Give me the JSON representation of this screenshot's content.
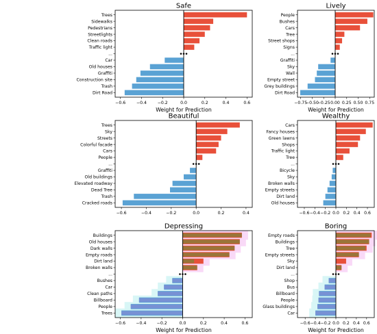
{
  "figure": {
    "colors": {
      "positive": "#e8503a",
      "negative": "#5aa2d4",
      "overlay_positive": "#8c7a3a",
      "overlay_negative": "#7c8ed4",
      "pos_shadow": "#f9d9f7",
      "neg_shadow": "#d8f6f6"
    }
  },
  "chart_data": [
    {
      "type": "bar",
      "orientation": "horizontal",
      "title": "Safe",
      "xlabel": "Weight for Prediction",
      "xlim": [
        -0.65,
        0.65
      ],
      "xticks": [
        -0.6,
        -0.4,
        -0.2,
        0.0,
        0.2,
        0.4,
        0.6
      ],
      "xtick_labels": [
        "−0.6",
        "−0.4",
        "−0.2",
        "0.0",
        "0.2",
        "0.4",
        "0.6"
      ],
      "ellipsis_label": "...",
      "positive": {
        "categories": [
          "Trees",
          "Sidewalks",
          "Pedestrians",
          "Streetlights",
          "Clean roads",
          "Traffic light"
        ],
        "values": [
          0.6,
          0.28,
          0.25,
          0.2,
          0.15,
          0.1
        ]
      },
      "negative": {
        "categories": [
          "Car",
          "Old houses",
          "Graffiti",
          "Construction site",
          "Trash",
          "Dirt Road"
        ],
        "values": [
          -0.18,
          -0.32,
          -0.41,
          -0.45,
          -0.49,
          -0.56
        ]
      },
      "overlay": null
    },
    {
      "type": "bar",
      "orientation": "horizontal",
      "title": "Lively",
      "xlabel": "Weight for Prediction",
      "xlim": [
        -0.82,
        0.85
      ],
      "xticks": [
        -0.75,
        -0.5,
        -0.25,
        0.0,
        0.25,
        0.5,
        0.75
      ],
      "xtick_labels": [
        "−0.75",
        "−0.50",
        "−0.25",
        "0.00",
        "0.25",
        "0.50",
        "0.75"
      ],
      "ellipsis_label": "...",
      "positive": {
        "categories": [
          "People",
          "Bushes",
          "Cars",
          "Tree",
          "Street shops",
          "Signs"
        ],
        "values": [
          0.83,
          0.7,
          0.54,
          0.2,
          0.15,
          0.1
        ]
      },
      "negative": {
        "categories": [
          "Graffiti",
          "Sky",
          "Wall",
          "Empty street",
          "Grey buildings",
          "Dirt Road"
        ],
        "values": [
          -0.1,
          -0.37,
          -0.4,
          -0.44,
          -0.6,
          -0.76
        ]
      },
      "overlay": null
    },
    {
      "type": "bar",
      "orientation": "horizontal",
      "title": "Beautiful",
      "xlabel": "",
      "xlim": [
        -0.65,
        0.45
      ],
      "xticks": [
        -0.6,
        -0.4,
        -0.2,
        0.0,
        0.2,
        0.4
      ],
      "xtick_labels": [
        "−0.6",
        "−0.4",
        "−0.2",
        "0.0",
        "0.2",
        "0.4"
      ],
      "ellipsis_label": "...",
      "positive": {
        "categories": [
          "Trees",
          "Sky",
          "Streets",
          "Colorful facade",
          "Cars",
          "People"
        ],
        "values": [
          0.35,
          0.25,
          0.2,
          0.18,
          0.16,
          0.05
        ]
      },
      "negative": {
        "categories": [
          "Graffiti",
          "Old buildings",
          "Elevated roadway",
          "Dead Tree",
          "Trash",
          "Cracked roads"
        ],
        "values": [
          -0.05,
          -0.1,
          -0.19,
          -0.21,
          -0.5,
          -0.59
        ]
      },
      "overlay": null
    },
    {
      "type": "bar",
      "orientation": "horizontal",
      "title": "Wealthy",
      "xlabel": "",
      "xlim": [
        -0.73,
        0.73
      ],
      "xticks": [
        -0.6,
        -0.4,
        -0.2,
        0.0,
        0.2,
        0.4,
        0.6
      ],
      "xtick_labels": [
        "−0.6",
        "−0.4",
        "−0.2",
        "0.0",
        "0.2",
        "0.4",
        "0.6"
      ],
      "ellipsis_label": "...",
      "positive": {
        "categories": [
          "Cars",
          "Fancy houses",
          "Green lawns",
          "Shops",
          "Traffic light",
          "Tree"
        ],
        "values": [
          0.7,
          0.57,
          0.46,
          0.42,
          0.26,
          0.14
        ]
      },
      "negative": {
        "categories": [
          "Bicycle",
          "Sky",
          "Broken walls",
          "Empty streets",
          "Dirt land",
          "Old houses"
        ],
        "values": [
          -0.06,
          -0.08,
          -0.12,
          -0.16,
          -0.2,
          -0.24
        ]
      },
      "overlay": null
    },
    {
      "type": "bar",
      "orientation": "horizontal",
      "title": "Depressing",
      "xlabel": "Weight for Prediction",
      "xlim": [
        -0.65,
        0.67
      ],
      "xticks": [
        -0.6,
        -0.4,
        -0.2,
        0.0,
        0.2,
        0.4,
        0.6
      ],
      "xtick_labels": [
        "−0.6",
        "−0.4",
        "−0.2",
        "0.0",
        "0.2",
        "0.4",
        "0.6"
      ],
      "ellipsis_label": "...",
      "positive": {
        "categories": [
          "Buildings",
          "Old houses",
          "Dark walls",
          "Empty roads",
          "Dirt land",
          "Broken walls"
        ],
        "values": [
          0.57,
          0.55,
          0.5,
          0.45,
          0.2,
          0.14
        ]
      },
      "negative": {
        "categories": [
          "Bushes",
          "Car",
          "Clean paths",
          "Billboard",
          "People",
          "Trees"
        ],
        "values": [
          -0.1,
          -0.18,
          -0.24,
          -0.42,
          -0.5,
          -0.59
        ]
      },
      "overlay": {
        "positive": [
          0.57,
          0.55,
          0.5,
          0.45,
          0.11,
          0.14
        ],
        "negative": [
          -0.1,
          -0.18,
          -0.24,
          -0.42,
          -0.5,
          -0.59
        ]
      }
    },
    {
      "type": "bar",
      "orientation": "horizontal",
      "title": "Boring",
      "xlabel": "Weight for Prediction",
      "xlim": [
        -0.75,
        0.75
      ],
      "xticks": [
        -0.6,
        -0.4,
        -0.2,
        0.0,
        0.2,
        0.4,
        0.6
      ],
      "xtick_labels": [
        "−0.6",
        "−0.4",
        "−0.2",
        "0.0",
        "0.2",
        "0.4",
        "0.6"
      ],
      "ellipsis_label": "...",
      "positive": {
        "categories": [
          "Empty roads",
          "Buildings",
          "Tree",
          "Empty streets",
          "Sky",
          "Dirt land"
        ],
        "values": [
          0.7,
          0.65,
          0.6,
          0.45,
          0.2,
          0.11
        ]
      },
      "negative": {
        "categories": [
          "Shop",
          "Bus",
          "Billboard",
          "People",
          "Glass buildings",
          "Car"
        ],
        "values": [
          -0.14,
          -0.22,
          -0.33,
          -0.34,
          -0.36,
          -0.4
        ]
      },
      "overlay": {
        "positive": [
          0.68,
          0.65,
          0.58,
          0.45,
          0.0,
          0.11
        ],
        "negative": [
          -0.14,
          -0.22,
          -0.33,
          -0.34,
          -0.36,
          -0.4
        ]
      }
    }
  ]
}
